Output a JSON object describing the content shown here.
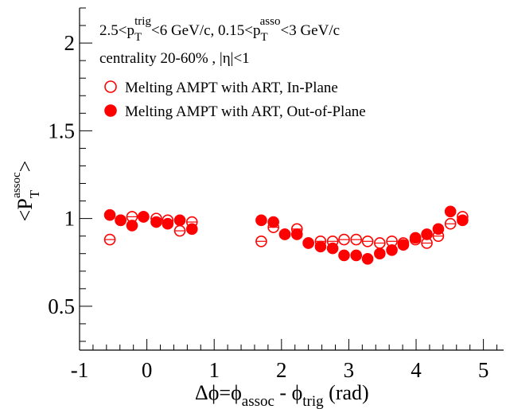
{
  "chart_data": {
    "type": "scatter",
    "title": "",
    "xlabel": "Δφ=φassoc - φtrig (rad)",
    "ylabel": "<P_T^assoc>",
    "xlim": [
      -1,
      5.3
    ],
    "ylim": [
      0.25,
      2.2
    ],
    "x_ticks": [
      "-1",
      "0",
      "1",
      "2",
      "3",
      "4",
      "5"
    ],
    "y_ticks": [
      "0.5",
      "1",
      "1.5",
      "2"
    ],
    "annotations": [
      "2.5<p_T^trig<6 GeV/c, 0.15<p_T^asso<3 GeV/c",
      "centrality 20-60% ,  |η|<1"
    ],
    "legend_position": "top-left",
    "series": [
      {
        "name": "Melting AMPT with ART, In-Plane",
        "marker": "open-circle",
        "color": "#ff0000",
        "x": [
          -0.55,
          -0.39,
          -0.22,
          -0.05,
          0.14,
          0.31,
          0.49,
          0.67,
          1.7,
          1.88,
          2.05,
          2.23,
          2.4,
          2.58,
          2.76,
          2.93,
          3.11,
          3.28,
          3.46,
          3.64,
          3.81,
          3.99,
          4.16,
          4.33,
          4.51,
          4.69
        ],
        "y": [
          0.88,
          0.99,
          1.01,
          1.01,
          1.0,
          0.99,
          0.93,
          0.98,
          0.87,
          0.95,
          0.91,
          0.94,
          0.86,
          0.87,
          0.87,
          0.88,
          0.88,
          0.87,
          0.86,
          0.87,
          0.86,
          0.88,
          0.86,
          0.9,
          0.97,
          1.01
        ]
      },
      {
        "name": "Melting AMPT with ART, Out-of-Plane",
        "marker": "filled-circle",
        "color": "#ff0000",
        "x": [
          -0.55,
          -0.39,
          -0.22,
          -0.05,
          0.14,
          0.31,
          0.49,
          0.67,
          1.7,
          1.88,
          2.05,
          2.23,
          2.4,
          2.58,
          2.76,
          2.93,
          3.11,
          3.28,
          3.46,
          3.64,
          3.81,
          3.99,
          4.16,
          4.33,
          4.51,
          4.69
        ],
        "y": [
          1.02,
          0.99,
          0.96,
          1.01,
          0.98,
          0.97,
          0.99,
          0.94,
          0.99,
          0.98,
          0.91,
          0.91,
          0.86,
          0.84,
          0.83,
          0.79,
          0.79,
          0.77,
          0.8,
          0.82,
          0.85,
          0.89,
          0.91,
          0.94,
          1.04,
          0.99
        ]
      }
    ]
  }
}
